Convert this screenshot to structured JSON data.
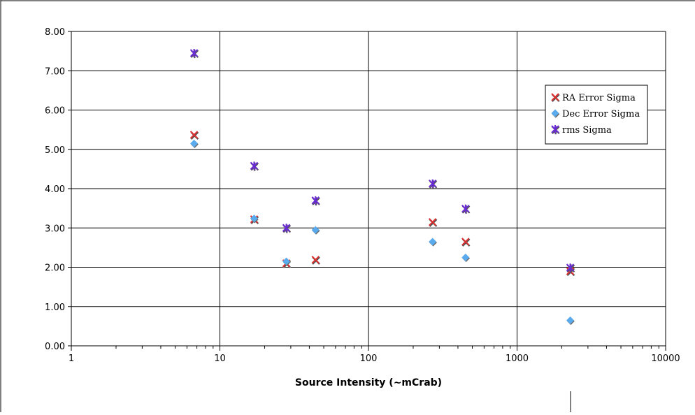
{
  "chart_data": {
    "type": "scatter",
    "xlabel": "Source Intensity (~mCrab)",
    "ylabel": "",
    "title": "",
    "xscale": "log",
    "xlim": [
      1,
      10000
    ],
    "ylim": [
      0,
      8
    ],
    "x_ticks": [
      "1",
      "10",
      "100",
      "1000",
      "10000"
    ],
    "y_ticks": [
      "0.00",
      "1.00",
      "2.00",
      "3.00",
      "4.00",
      "5.00",
      "6.00",
      "7.00",
      "8.00"
    ],
    "grid": true,
    "legend_position": "right",
    "series": [
      {
        "name": "RA Error Sigma",
        "marker": "x",
        "color": "#e03030",
        "points": [
          [
            6.7,
            5.37
          ],
          [
            17,
            3.22
          ],
          [
            28,
            2.1
          ],
          [
            44,
            2.19
          ],
          [
            270,
            3.15
          ],
          [
            450,
            2.65
          ],
          [
            2280,
            1.9
          ]
        ]
      },
      {
        "name": "Dec Error Sigma",
        "marker": "diamond",
        "color": "#5aaaee",
        "points": [
          [
            6.7,
            5.15
          ],
          [
            17,
            3.24
          ],
          [
            28,
            2.15
          ],
          [
            44,
            2.95
          ],
          [
            270,
            2.65
          ],
          [
            450,
            2.25
          ],
          [
            2280,
            0.65
          ]
        ]
      },
      {
        "name": "rms Sigma",
        "marker": "asterisk",
        "color": "#6a2bd6",
        "points": [
          [
            6.7,
            7.45
          ],
          [
            17,
            4.58
          ],
          [
            28,
            3.0
          ],
          [
            44,
            3.7
          ],
          [
            270,
            4.13
          ],
          [
            450,
            3.49
          ],
          [
            2280,
            1.99
          ]
        ]
      }
    ]
  }
}
